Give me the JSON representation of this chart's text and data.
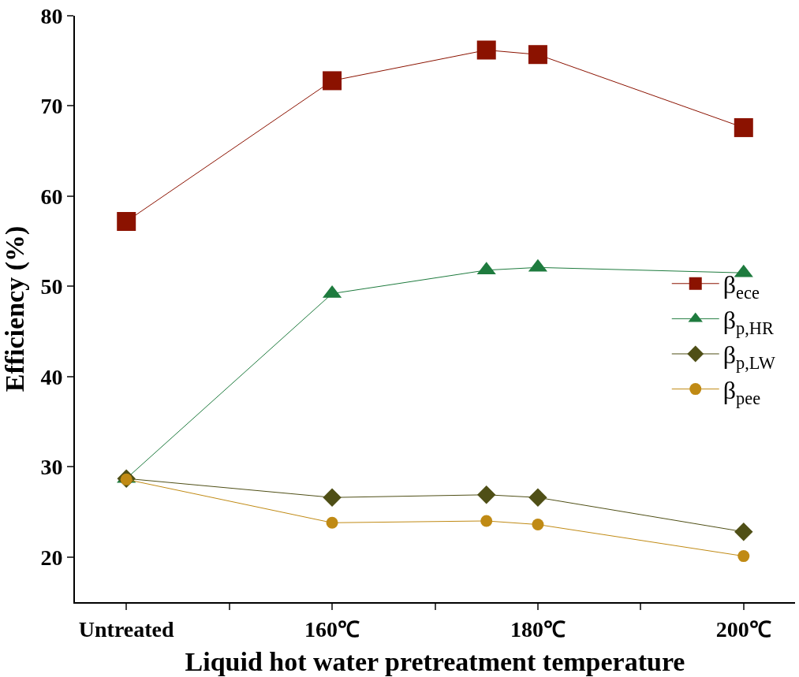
{
  "chart_data": {
    "type": "line",
    "xlabel": "Liquid hot water pretreatment temperature",
    "ylabel": "Efficiency (%)",
    "x": [
      140,
      160,
      175,
      180,
      200
    ],
    "xlim": [
      135,
      205
    ],
    "xticks": [
      {
        "value": 140,
        "label": "Untreated"
      },
      {
        "value": 150,
        "label": null
      },
      {
        "value": 160,
        "label": "160℃"
      },
      {
        "value": 170,
        "label": null
      },
      {
        "value": 180,
        "label": "180℃"
      },
      {
        "value": 190,
        "label": null
      },
      {
        "value": 200,
        "label": "200℃"
      }
    ],
    "ylim": [
      15,
      80
    ],
    "yticks": [
      20,
      30,
      40,
      50,
      60,
      70,
      80
    ],
    "series": [
      {
        "name": "β$_{ece}$",
        "color": "#8b1200",
        "marker": "square",
        "values": [
          57.2,
          72.8,
          76.2,
          75.7,
          67.6
        ]
      },
      {
        "name": "β$_{p,HR}$",
        "color": "#1e7b3e",
        "marker": "triangle",
        "values": [
          28.7,
          49.2,
          51.8,
          52.1,
          51.5
        ]
      },
      {
        "name": "β$_{p,LW}$",
        "color": "#4f4f16",
        "marker": "diamond",
        "values": [
          28.7,
          26.6,
          26.9,
          26.6,
          22.8
        ]
      },
      {
        "name": "β$_{pee}$",
        "color": "#c08a14",
        "marker": "circle",
        "values": [
          28.6,
          23.8,
          24.0,
          23.6,
          20.1
        ]
      }
    ],
    "legend": "right",
    "line_style": "solid"
  }
}
